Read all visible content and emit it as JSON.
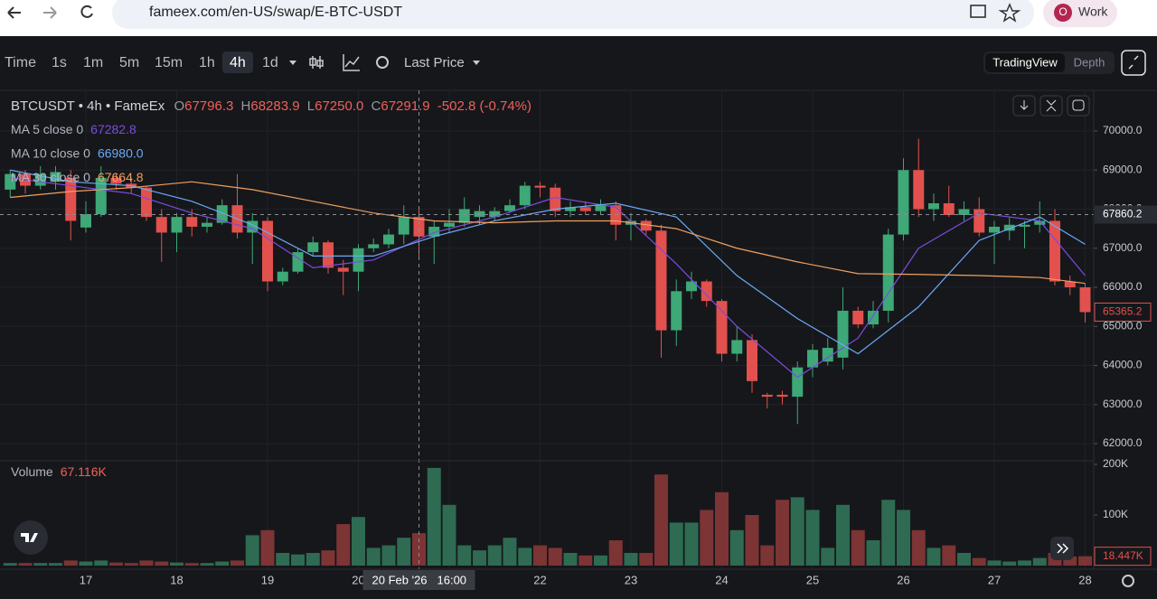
{
  "browser": {
    "url": "fameex.com/en-US/swap/E-BTC-USDT",
    "profile_initial": "O",
    "profile": "Work"
  },
  "toolbar": {
    "intervals": [
      "Time",
      "1s",
      "1m",
      "5m",
      "15m",
      "1h",
      "4h",
      "1d"
    ],
    "active": "4h",
    "price_type": "Last Price",
    "views": [
      "TradingView",
      "Depth"
    ]
  },
  "legend": {
    "symbol": "BTCUSDT • 4h • FameEx",
    "open_prefix": "O",
    "open": "67796.3",
    "high_prefix": "H",
    "high": "68283.9",
    "low_prefix": "L",
    "low": "67250.0",
    "close_prefix": "C",
    "close": "67291.9",
    "change": "-502.8 (-0.74%)"
  },
  "chart_data": {
    "type": "candlestick",
    "categories": [
      null,
      null,
      null,
      null,
      null,
      "17",
      null,
      null,
      null,
      null,
      null,
      "18",
      null,
      null,
      null,
      null,
      null,
      "19",
      null,
      null,
      null,
      null,
      null,
      "20",
      null,
      null,
      null,
      null,
      null,
      "21",
      null,
      null,
      null,
      null,
      null,
      "22",
      null,
      null,
      null,
      null,
      null,
      "23",
      null,
      null,
      null,
      null,
      null,
      "24",
      null,
      null,
      null,
      null,
      null,
      "25",
      null,
      null,
      null,
      null,
      null,
      "26",
      null,
      null,
      null,
      null,
      null,
      "27",
      null,
      null,
      null,
      null,
      null,
      "28"
    ],
    "ohlc": [
      [
        68500,
        69000,
        68300,
        68900
      ],
      [
        68900,
        69000,
        68400,
        68600
      ],
      [
        68600,
        69100,
        68500,
        68900
      ],
      [
        68700,
        69100,
        68500,
        68950
      ],
      [
        68800,
        69000,
        67200,
        67700
      ],
      [
        67530,
        68200,
        67400,
        67870
      ],
      [
        67870,
        69100,
        67800,
        68800
      ],
      [
        68800,
        68900,
        68500,
        68650
      ],
      [
        68650,
        68800,
        68400,
        68550
      ],
      [
        68550,
        68600,
        67700,
        67800
      ],
      [
        67800,
        68000,
        66650,
        67400
      ],
      [
        67400,
        67900,
        66900,
        67800
      ],
      [
        67800,
        68000,
        67300,
        67550
      ],
      [
        67550,
        67800,
        67400,
        67650
      ],
      [
        67650,
        68250,
        67600,
        68100
      ],
      [
        68100,
        68900,
        67250,
        67400
      ],
      [
        67400,
        67900,
        66600,
        67700
      ],
      [
        67700,
        67800,
        65900,
        66150
      ],
      [
        66150,
        66500,
        66050,
        66400
      ],
      [
        66400,
        67000,
        66350,
        66900
      ],
      [
        66900,
        67300,
        66800,
        67150
      ],
      [
        67150,
        67200,
        66350,
        66500
      ],
      [
        66500,
        66700,
        65800,
        66400
      ],
      [
        66400,
        67100,
        65900,
        67000
      ],
      [
        67000,
        67250,
        66900,
        67100
      ],
      [
        67100,
        67500,
        67000,
        67350
      ],
      [
        67350,
        68100,
        67100,
        67800
      ],
      [
        67800,
        68000,
        66700,
        67300
      ],
      [
        67300,
        67700,
        66600,
        67550
      ],
      [
        67550,
        68000,
        67400,
        67650
      ],
      [
        67650,
        68300,
        67550,
        68000
      ],
      [
        67800,
        68100,
        67600,
        67950
      ],
      [
        67800,
        68050,
        67700,
        67950
      ],
      [
        67950,
        68250,
        67900,
        68100
      ],
      [
        68100,
        68700,
        68000,
        68600
      ],
      [
        68600,
        68700,
        68300,
        68550
      ],
      [
        68550,
        68650,
        67800,
        67950
      ],
      [
        67950,
        68200,
        67800,
        68050
      ],
      [
        68050,
        68200,
        67850,
        67950
      ],
      [
        67950,
        68250,
        67850,
        68100
      ],
      [
        68100,
        68200,
        67200,
        67600
      ],
      [
        67600,
        67900,
        67200,
        67700
      ],
      [
        67700,
        67750,
        67350,
        67450
      ],
      [
        67450,
        67600,
        64200,
        64900
      ],
      [
        64900,
        66200,
        64500,
        65900
      ],
      [
        65900,
        66400,
        65700,
        66150
      ],
      [
        66150,
        66200,
        65500,
        65650
      ],
      [
        65650,
        65700,
        64100,
        64300
      ],
      [
        64300,
        65000,
        64100,
        64650
      ],
      [
        64650,
        64800,
        63300,
        63600
      ],
      [
        63250,
        63300,
        62900,
        63200
      ],
      [
        63250,
        63350,
        63000,
        63200
      ],
      [
        63200,
        64100,
        62500,
        63950
      ],
      [
        63950,
        64550,
        63700,
        64400
      ],
      [
        64100,
        64700,
        64000,
        64450
      ],
      [
        64200,
        66000,
        63900,
        65400
      ],
      [
        65400,
        65500,
        64950,
        65050
      ],
      [
        65050,
        65650,
        64950,
        65400
      ],
      [
        65400,
        67500,
        65100,
        67350
      ],
      [
        67350,
        69300,
        67200,
        69000
      ],
      [
        69000,
        69800,
        67800,
        68000
      ],
      [
        68000,
        68400,
        67700,
        68150
      ],
      [
        68150,
        68600,
        67800,
        67850
      ],
      [
        67850,
        68200,
        67700,
        68000
      ],
      [
        68000,
        68300,
        67300,
        67400
      ],
      [
        67400,
        67700,
        66600,
        67550
      ],
      [
        67450,
        67800,
        67200,
        67600
      ],
      [
        67550,
        67700,
        67000,
        67600
      ],
      [
        67600,
        68200,
        67400,
        67700
      ],
      [
        67700,
        68000,
        66050,
        66150
      ],
      [
        66150,
        66300,
        65800,
        66000
      ],
      [
        66000,
        66100,
        65100,
        65365.2
      ]
    ],
    "up_color": "#3ea877",
    "down_color": "#e2514d",
    "ylim": [
      61561,
      71040
    ],
    "yticks": [
      {
        "value": 62000,
        "label": "62000.0"
      },
      {
        "value": 63000,
        "label": "63000.0"
      },
      {
        "value": 64000,
        "label": "64000.0"
      },
      {
        "value": 65000,
        "label": "65000.0"
      },
      {
        "value": 66000,
        "label": "66000.0"
      },
      {
        "value": 67000,
        "label": "67000.0"
      },
      {
        "value": 68000,
        "label": "68000.0"
      },
      {
        "value": 69000,
        "label": "69000.0"
      },
      {
        "value": 70000,
        "label": "70000.0"
      }
    ],
    "grid": true,
    "ma": [
      {
        "name": "MA 5 close 0",
        "readout": "67282.8",
        "color": "#7c4ce0",
        "x": [
          0,
          4,
          8,
          12,
          16,
          20,
          24,
          28,
          32,
          36,
          40,
          44,
          48,
          52,
          56,
          60,
          64,
          68,
          71
        ],
        "values": [
          68800,
          68600,
          68400,
          67900,
          67500,
          66500,
          66700,
          67400,
          67800,
          68300,
          68050,
          66600,
          65000,
          63700,
          64700,
          67000,
          67900,
          67700,
          66300
        ]
      },
      {
        "name": "MA 10 close 0",
        "readout": "66980.0",
        "color": "#6aaaf5",
        "x": [
          0,
          4,
          8,
          12,
          16,
          20,
          24,
          28,
          32,
          36,
          40,
          44,
          48,
          52,
          56,
          60,
          64,
          68,
          71
        ],
        "values": [
          69000,
          68700,
          68600,
          68200,
          67600,
          66800,
          66800,
          67300,
          67700,
          68000,
          68150,
          67800,
          66300,
          65200,
          64300,
          65500,
          67200,
          67800,
          67100
        ]
      },
      {
        "name": "MA 30 close 0",
        "readout": "67664.8",
        "color": "#f0a060",
        "x": [
          0,
          4,
          8,
          12,
          16,
          20,
          24,
          28,
          32,
          36,
          40,
          44,
          48,
          52,
          56,
          60,
          64,
          68,
          71
        ],
        "values": [
          68300,
          68450,
          68550,
          68700,
          68500,
          68200,
          67900,
          67700,
          67650,
          67700,
          67700,
          67500,
          67000,
          66650,
          66350,
          66330,
          66300,
          66250,
          66100
        ]
      }
    ],
    "last_price": {
      "value": 65365.2,
      "label": "65365.2"
    },
    "crosshair": {
      "category": 27,
      "price": {
        "value": 67860.2,
        "label": "67860.2"
      },
      "date": "20 Feb '26",
      "time": "16:00"
    },
    "volume": {
      "name": "Volume",
      "readout": "67.116K",
      "values": [
        5,
        5,
        5,
        5,
        10,
        8,
        10,
        6,
        5,
        10,
        8,
        6,
        5,
        5,
        8,
        10,
        60,
        70,
        25,
        22,
        25,
        30,
        82,
        96,
        35,
        40,
        55,
        64,
        193,
        120,
        40,
        30,
        40,
        55,
        35,
        40,
        35,
        25,
        20,
        20,
        50,
        25,
        25,
        180,
        85,
        85,
        110,
        145,
        70,
        100,
        40,
        130,
        135,
        110,
        35,
        120,
        70,
        50,
        130,
        110,
        70,
        35,
        40,
        25,
        15,
        10,
        8,
        10,
        15,
        25,
        18,
        18.447
      ],
      "ylim": [
        0,
        200
      ],
      "yticks": [
        {
          "value": 100,
          "label": "100K"
        },
        {
          "value": 200,
          "label": "200K"
        }
      ],
      "last": {
        "value": 18.447,
        "label": "18.447K"
      }
    }
  }
}
